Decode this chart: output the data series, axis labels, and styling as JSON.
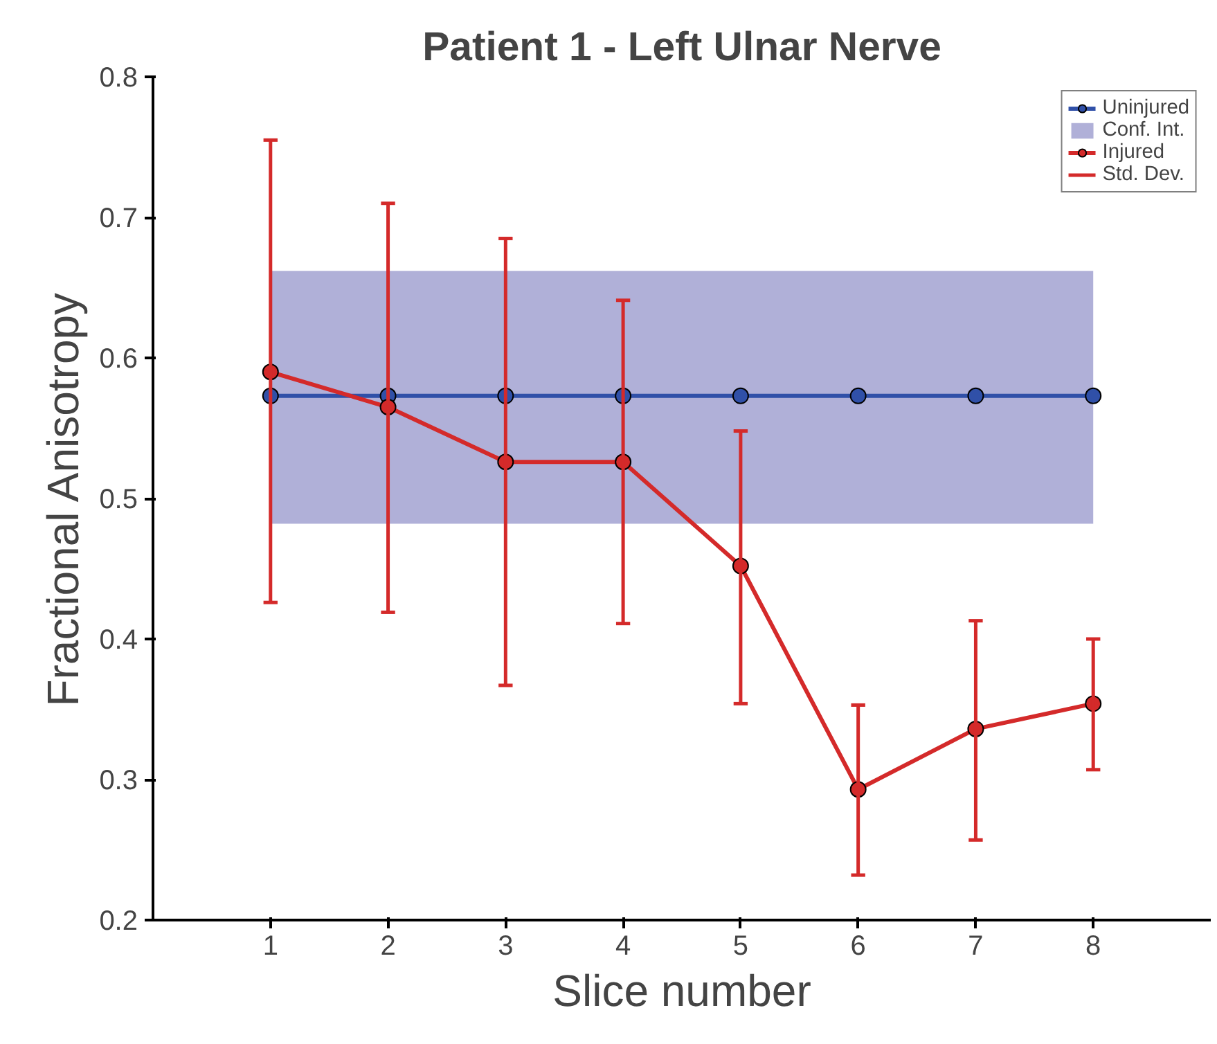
{
  "chart_data": {
    "type": "line",
    "title": "Patient 1 - Left Ulnar Nerve",
    "xlabel": "Slice number",
    "ylabel": "Fractional Anisotropy",
    "x": [
      1,
      2,
      3,
      4,
      5,
      6,
      7,
      8
    ],
    "series": [
      {
        "name": "Uninjured",
        "color": "#3050a8",
        "values": [
          0.573,
          0.573,
          0.573,
          0.573,
          0.573,
          0.573,
          0.573,
          0.573
        ]
      },
      {
        "name": "Injured",
        "color": "#d42a2a",
        "values": [
          0.59,
          0.565,
          0.526,
          0.526,
          0.452,
          0.293,
          0.336,
          0.354
        ],
        "errors": [
          [
            0.426,
            0.755
          ],
          [
            0.419,
            0.71
          ],
          [
            0.367,
            0.685
          ],
          [
            0.411,
            0.641
          ],
          [
            0.354,
            0.548
          ],
          [
            0.232,
            0.353
          ],
          [
            0.257,
            0.413
          ],
          [
            0.307,
            0.4
          ]
        ]
      }
    ],
    "bands": [
      {
        "axis": "y",
        "from": 0.482,
        "to": 0.662,
        "label": "Conf. Int.",
        "color": "#b0b0d8"
      }
    ],
    "annotations": [
      "Std. Dev."
    ],
    "xlim": [
      0,
      9
    ],
    "xticks": [
      1,
      2,
      3,
      4,
      5,
      6,
      7,
      8
    ],
    "ylim": [
      0.2,
      0.8
    ],
    "yticks": [
      0.2,
      0.3,
      0.4,
      0.5,
      0.6,
      0.7,
      0.8
    ],
    "grid": false,
    "legend": "top right",
    "marker": "circle",
    "line_style": "solid"
  }
}
